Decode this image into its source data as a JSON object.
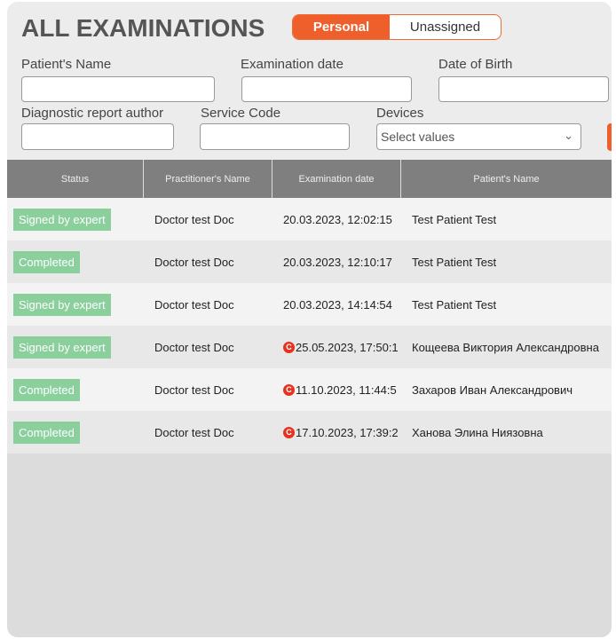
{
  "header": {
    "title": "ALL EXAMINATIONS",
    "tabs": [
      {
        "label": "Personal",
        "active": true
      },
      {
        "label": "Unassigned",
        "active": false
      }
    ]
  },
  "filters": {
    "patient_name": {
      "label": "Patient's Name",
      "value": ""
    },
    "exam_date": {
      "label": "Examination date",
      "value": ""
    },
    "dob": {
      "label": "Date of Birth",
      "value": ""
    },
    "report_author": {
      "label": "Diagnostic report author",
      "value": ""
    },
    "service_code": {
      "label": "Service Code",
      "value": ""
    },
    "devices": {
      "label": "Devices",
      "placeholder": "Select values"
    }
  },
  "table": {
    "columns": [
      "Status",
      "Practitioner's Name",
      "Examination date",
      "Patient's Name"
    ],
    "rows": [
      {
        "status": "Signed by expert",
        "practitioner": "Doctor test Doc",
        "date": "20.03.2023, 12:02:15",
        "patient": "Test Patient Test",
        "flag": false
      },
      {
        "status": "Completed",
        "practitioner": "Doctor test Doc",
        "date": "20.03.2023, 12:10:17",
        "patient": "Test Patient Test",
        "flag": false
      },
      {
        "status": "Signed by expert",
        "practitioner": "Doctor test Doc",
        "date": "20.03.2023, 14:14:54",
        "patient": "Test Patient Test",
        "flag": false
      },
      {
        "status": "Signed by expert",
        "practitioner": "Doctor test Doc",
        "date": "25.05.2023, 17:50:1",
        "patient": "Кощеева Виктория Александровна",
        "flag": true
      },
      {
        "status": "Completed",
        "practitioner": "Doctor test Doc",
        "date": "11.10.2023, 11:44:5",
        "patient": "Захаров Иван Александрович",
        "flag": true
      },
      {
        "status": "Completed",
        "practitioner": "Doctor test Doc",
        "date": "17.10.2023, 17:39:2",
        "patient": "Ханова Элина Ниязовна",
        "flag": true
      }
    ],
    "flag_icon_letter": "C"
  },
  "colors": {
    "accent": "#ef5f2b",
    "status_badge": "#8acf9c",
    "flag": "#e53323",
    "header": "#7f7f7f"
  }
}
